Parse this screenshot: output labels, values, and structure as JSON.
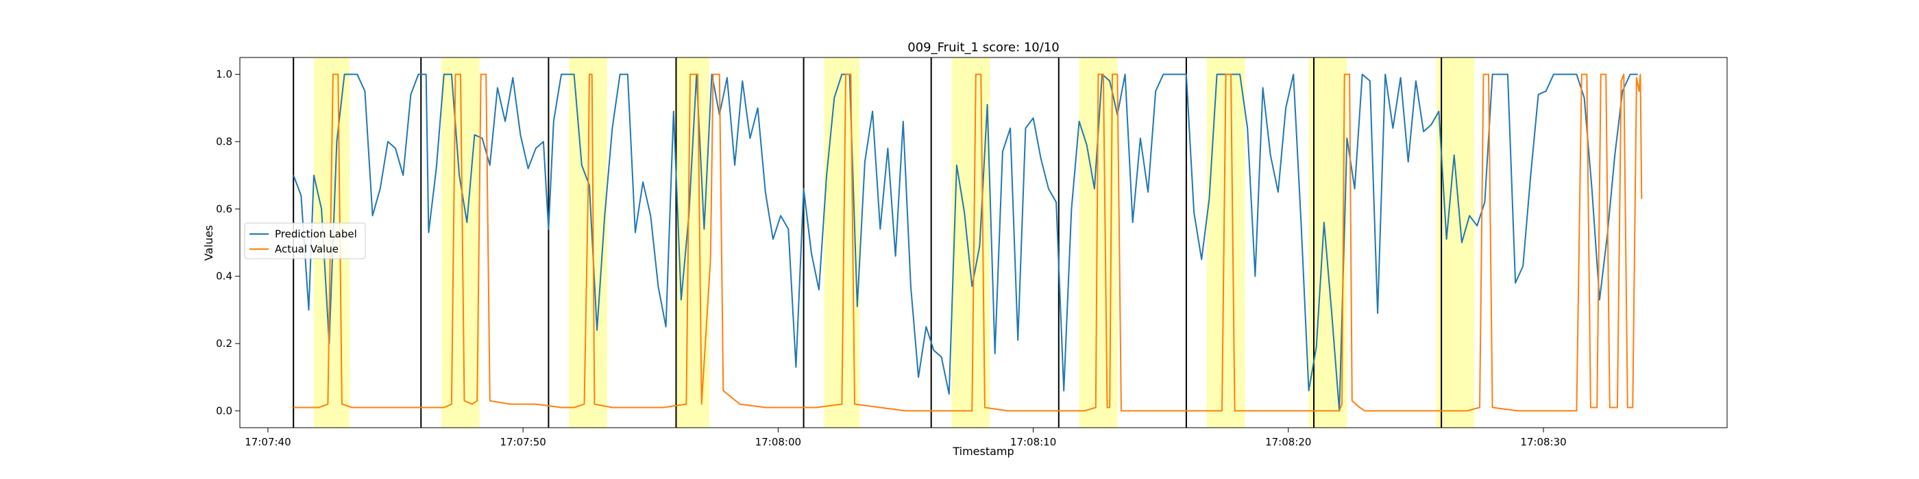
{
  "chart_data": {
    "type": "line",
    "title": "009_Fruit_1 score: 10/10",
    "xlabel": "Timestamp",
    "ylabel": "Values",
    "x_unit": "seconds since 17:07:40",
    "xlim": [
      -1.1,
      57.2
    ],
    "ylim": [
      -0.05,
      1.05
    ],
    "x_ticks": [
      {
        "value": 0,
        "label": "17:07:40"
      },
      {
        "value": 10,
        "label": "17:07:50"
      },
      {
        "value": 20,
        "label": "17:08:00"
      },
      {
        "value": 30,
        "label": "17:08:10"
      },
      {
        "value": 40,
        "label": "17:08:20"
      },
      {
        "value": 50,
        "label": "17:08:30"
      }
    ],
    "y_ticks": [
      {
        "value": 0.0,
        "label": "0.0"
      },
      {
        "value": 0.2,
        "label": "0.2"
      },
      {
        "value": 0.4,
        "label": "0.4"
      },
      {
        "value": 0.6,
        "label": "0.6"
      },
      {
        "value": 0.8,
        "label": "0.8"
      },
      {
        "value": 1.0,
        "label": "1.0"
      }
    ],
    "legend_position": "center-left",
    "grid": false,
    "vertical_lines": [
      1.0,
      6.0,
      11.0,
      16.0,
      21.0,
      26.0,
      31.0,
      36.0,
      41.0,
      46.0
    ],
    "highlight_spans": [
      [
        1.8,
        3.2
      ],
      [
        6.8,
        8.3
      ],
      [
        11.8,
        13.3
      ],
      [
        16.0,
        17.3
      ],
      [
        21.8,
        23.2
      ],
      [
        26.8,
        28.3
      ],
      [
        31.8,
        33.3
      ],
      [
        36.8,
        38.3
      ],
      [
        40.8,
        42.3
      ],
      [
        45.8,
        47.3
      ]
    ],
    "highlight_color": "#ffff99",
    "series": [
      {
        "name": "Prediction Label",
        "color": "#1f77b4",
        "points": [
          [
            1.0,
            0.7
          ],
          [
            1.3,
            0.64
          ],
          [
            1.6,
            0.3
          ],
          [
            1.8,
            0.7
          ],
          [
            2.1,
            0.6
          ],
          [
            2.4,
            0.2
          ],
          [
            2.7,
            0.8
          ],
          [
            3.0,
            1.0
          ],
          [
            3.5,
            1.0
          ],
          [
            3.8,
            0.95
          ],
          [
            4.1,
            0.58
          ],
          [
            4.4,
            0.66
          ],
          [
            4.7,
            0.8
          ],
          [
            5.0,
            0.78
          ],
          [
            5.3,
            0.7
          ],
          [
            5.6,
            0.94
          ],
          [
            5.9,
            1.0
          ],
          [
            6.2,
            1.0
          ],
          [
            6.3,
            0.53
          ],
          [
            6.6,
            0.72
          ],
          [
            6.9,
            1.0
          ],
          [
            7.2,
            1.0
          ],
          [
            7.5,
            0.7
          ],
          [
            7.8,
            0.56
          ],
          [
            8.1,
            0.82
          ],
          [
            8.4,
            0.81
          ],
          [
            8.7,
            0.73
          ],
          [
            9.0,
            0.96
          ],
          [
            9.3,
            0.86
          ],
          [
            9.6,
            0.99
          ],
          [
            9.9,
            0.82
          ],
          [
            10.2,
            0.72
          ],
          [
            10.5,
            0.78
          ],
          [
            10.8,
            0.8
          ],
          [
            11.0,
            0.54
          ],
          [
            11.2,
            0.86
          ],
          [
            11.5,
            1.0
          ],
          [
            12.0,
            1.0
          ],
          [
            12.3,
            0.73
          ],
          [
            12.6,
            0.67
          ],
          [
            12.9,
            0.24
          ],
          [
            13.2,
            0.58
          ],
          [
            13.5,
            0.84
          ],
          [
            13.8,
            1.0
          ],
          [
            14.1,
            1.0
          ],
          [
            14.4,
            0.53
          ],
          [
            14.7,
            0.68
          ],
          [
            15.0,
            0.58
          ],
          [
            15.3,
            0.37
          ],
          [
            15.6,
            0.25
          ],
          [
            15.9,
            0.89
          ],
          [
            16.2,
            0.33
          ],
          [
            16.5,
            0.58
          ],
          [
            16.8,
            1.0
          ],
          [
            17.1,
            0.54
          ],
          [
            17.4,
            1.0
          ],
          [
            17.7,
            0.88
          ],
          [
            18.0,
            0.99
          ],
          [
            18.3,
            0.73
          ],
          [
            18.6,
            0.98
          ],
          [
            18.9,
            0.81
          ],
          [
            19.2,
            0.9
          ],
          [
            19.5,
            0.65
          ],
          [
            19.8,
            0.51
          ],
          [
            20.1,
            0.58
          ],
          [
            20.4,
            0.54
          ],
          [
            20.7,
            0.13
          ],
          [
            21.0,
            0.66
          ],
          [
            21.3,
            0.47
          ],
          [
            21.6,
            0.36
          ],
          [
            21.9,
            0.7
          ],
          [
            22.2,
            0.93
          ],
          [
            22.5,
            1.0
          ],
          [
            22.8,
            1.0
          ],
          [
            23.1,
            0.31
          ],
          [
            23.4,
            0.74
          ],
          [
            23.7,
            0.89
          ],
          [
            24.0,
            0.54
          ],
          [
            24.3,
            0.78
          ],
          [
            24.6,
            0.46
          ],
          [
            24.9,
            0.86
          ],
          [
            25.2,
            0.37
          ],
          [
            25.5,
            0.1
          ],
          [
            25.8,
            0.25
          ],
          [
            26.1,
            0.18
          ],
          [
            26.4,
            0.16
          ],
          [
            26.7,
            0.05
          ],
          [
            27.0,
            0.73
          ],
          [
            27.3,
            0.59
          ],
          [
            27.6,
            0.37
          ],
          [
            27.9,
            0.49
          ],
          [
            28.2,
            0.91
          ],
          [
            28.5,
            0.17
          ],
          [
            28.8,
            0.77
          ],
          [
            29.1,
            0.84
          ],
          [
            29.4,
            0.21
          ],
          [
            29.7,
            0.84
          ],
          [
            30.0,
            0.87
          ],
          [
            30.3,
            0.75
          ],
          [
            30.6,
            0.66
          ],
          [
            30.9,
            0.62
          ],
          [
            31.2,
            0.06
          ],
          [
            31.5,
            0.6
          ],
          [
            31.8,
            0.86
          ],
          [
            32.1,
            0.79
          ],
          [
            32.4,
            0.66
          ],
          [
            32.7,
            1.0
          ],
          [
            33.0,
            0.98
          ],
          [
            33.3,
            0.88
          ],
          [
            33.6,
            1.0
          ],
          [
            33.9,
            0.56
          ],
          [
            34.2,
            0.81
          ],
          [
            34.5,
            0.65
          ],
          [
            34.8,
            0.95
          ],
          [
            35.1,
            1.0
          ],
          [
            35.7,
            1.0
          ],
          [
            36.0,
            1.0
          ],
          [
            36.3,
            0.59
          ],
          [
            36.6,
            0.45
          ],
          [
            36.9,
            0.63
          ],
          [
            37.2,
            1.0
          ],
          [
            37.5,
            1.0
          ],
          [
            37.8,
            1.0
          ],
          [
            38.1,
            1.0
          ],
          [
            38.4,
            0.84
          ],
          [
            38.7,
            0.4
          ],
          [
            39.0,
            0.96
          ],
          [
            39.3,
            0.76
          ],
          [
            39.6,
            0.65
          ],
          [
            39.9,
            0.9
          ],
          [
            40.2,
            1.0
          ],
          [
            40.5,
            0.56
          ],
          [
            40.8,
            0.06
          ],
          [
            41.1,
            0.19
          ],
          [
            41.4,
            0.56
          ],
          [
            41.7,
            0.29
          ],
          [
            42.0,
            0.0
          ],
          [
            42.3,
            0.81
          ],
          [
            42.6,
            0.66
          ],
          [
            42.9,
            1.0
          ],
          [
            43.2,
            0.98
          ],
          [
            43.5,
            0.29
          ],
          [
            43.8,
            1.0
          ],
          [
            44.1,
            0.84
          ],
          [
            44.4,
            0.99
          ],
          [
            44.7,
            0.74
          ],
          [
            45.0,
            0.98
          ],
          [
            45.3,
            0.83
          ],
          [
            45.6,
            0.85
          ],
          [
            45.9,
            0.89
          ],
          [
            46.2,
            0.51
          ],
          [
            46.5,
            0.76
          ],
          [
            46.8,
            0.5
          ],
          [
            47.1,
            0.58
          ],
          [
            47.4,
            0.55
          ],
          [
            47.7,
            0.62
          ],
          [
            48.0,
            1.0
          ],
          [
            48.3,
            1.0
          ],
          [
            48.6,
            1.0
          ],
          [
            48.9,
            0.38
          ],
          [
            49.2,
            0.43
          ],
          [
            49.5,
            0.7
          ],
          [
            49.8,
            0.94
          ],
          [
            50.1,
            0.95
          ],
          [
            50.4,
            1.0
          ],
          [
            50.7,
            1.0
          ],
          [
            51.0,
            1.0
          ],
          [
            51.3,
            1.0
          ],
          [
            51.6,
            0.93
          ],
          [
            51.9,
            0.66
          ],
          [
            52.2,
            0.33
          ],
          [
            52.5,
            0.52
          ],
          [
            52.8,
            0.76
          ],
          [
            53.1,
            0.95
          ],
          [
            53.4,
            1.0
          ],
          [
            53.7,
            1.0
          ]
        ]
      },
      {
        "name": "Actual Value",
        "color": "#ff7f0e",
        "points": [
          [
            1.0,
            0.01
          ],
          [
            1.5,
            0.01
          ],
          [
            2.0,
            0.01
          ],
          [
            2.35,
            0.02
          ],
          [
            2.55,
            1.0
          ],
          [
            2.75,
            1.0
          ],
          [
            2.9,
            0.02
          ],
          [
            3.3,
            0.01
          ],
          [
            4.0,
            0.01
          ],
          [
            5.0,
            0.01
          ],
          [
            6.0,
            0.01
          ],
          [
            6.9,
            0.01
          ],
          [
            7.2,
            0.02
          ],
          [
            7.35,
            1.0
          ],
          [
            7.55,
            1.0
          ],
          [
            7.7,
            0.03
          ],
          [
            8.0,
            0.02
          ],
          [
            8.2,
            0.03
          ],
          [
            8.35,
            1.0
          ],
          [
            8.55,
            1.0
          ],
          [
            8.7,
            0.03
          ],
          [
            9.5,
            0.02
          ],
          [
            10.5,
            0.02
          ],
          [
            11.5,
            0.01
          ],
          [
            12.0,
            0.01
          ],
          [
            12.4,
            0.02
          ],
          [
            12.55,
            0.65
          ],
          [
            12.6,
            1.0
          ],
          [
            12.7,
            1.0
          ],
          [
            12.8,
            0.02
          ],
          [
            13.5,
            0.01
          ],
          [
            14.5,
            0.01
          ],
          [
            15.5,
            0.01
          ],
          [
            16.4,
            0.02
          ],
          [
            16.55,
            1.0
          ],
          [
            16.85,
            1.0
          ],
          [
            17.0,
            0.02
          ],
          [
            17.35,
            0.45
          ],
          [
            17.45,
            1.0
          ],
          [
            17.7,
            1.0
          ],
          [
            17.85,
            0.06
          ],
          [
            18.5,
            0.02
          ],
          [
            19.5,
            0.01
          ],
          [
            20.5,
            0.01
          ],
          [
            21.5,
            0.01
          ],
          [
            22.5,
            0.02
          ],
          [
            22.65,
            1.0
          ],
          [
            22.85,
            1.0
          ],
          [
            23.0,
            0.02
          ],
          [
            24.0,
            0.01
          ],
          [
            25.0,
            0.0
          ],
          [
            26.0,
            0.0
          ],
          [
            27.0,
            0.0
          ],
          [
            27.6,
            0.0
          ],
          [
            27.75,
            1.0
          ],
          [
            27.95,
            1.0
          ],
          [
            28.1,
            0.01
          ],
          [
            29.0,
            0.0
          ],
          [
            30.0,
            0.0
          ],
          [
            31.0,
            0.0
          ],
          [
            32.0,
            0.0
          ],
          [
            32.45,
            0.01
          ],
          [
            32.55,
            1.0
          ],
          [
            32.75,
            1.0
          ],
          [
            32.9,
            0.01
          ],
          [
            33.0,
            0.01
          ],
          [
            33.1,
            1.0
          ],
          [
            33.3,
            1.0
          ],
          [
            33.45,
            0.0
          ],
          [
            34.5,
            0.0
          ],
          [
            35.5,
            0.0
          ],
          [
            36.5,
            0.0
          ],
          [
            37.4,
            0.0
          ],
          [
            37.55,
            1.0
          ],
          [
            37.75,
            1.0
          ],
          [
            37.9,
            0.0
          ],
          [
            38.5,
            0.0
          ],
          [
            39.5,
            0.0
          ],
          [
            40.5,
            0.0
          ],
          [
            41.5,
            0.0
          ],
          [
            42.0,
            0.0
          ],
          [
            42.1,
            0.02
          ],
          [
            42.2,
            1.0
          ],
          [
            42.4,
            1.0
          ],
          [
            42.5,
            0.03
          ],
          [
            42.8,
            0.01
          ],
          [
            43.0,
            0.0
          ],
          [
            44.0,
            0.0
          ],
          [
            45.0,
            0.0
          ],
          [
            46.0,
            0.0
          ],
          [
            47.0,
            0.0
          ],
          [
            47.5,
            0.01
          ],
          [
            47.65,
            1.0
          ],
          [
            47.85,
            1.0
          ],
          [
            48.0,
            0.01
          ],
          [
            49.0,
            0.0
          ],
          [
            50.0,
            0.0
          ],
          [
            50.8,
            0.0
          ],
          [
            51.0,
            0.0
          ],
          [
            51.3,
            0.0
          ],
          [
            51.5,
            1.0
          ],
          [
            51.7,
            1.0
          ],
          [
            51.85,
            0.01
          ],
          [
            52.1,
            0.01
          ],
          [
            52.25,
            1.0
          ],
          [
            52.45,
            1.0
          ],
          [
            52.6,
            0.01
          ],
          [
            52.9,
            0.01
          ],
          [
            53.05,
            0.98
          ],
          [
            53.15,
            1.0
          ],
          [
            53.3,
            0.01
          ],
          [
            53.5,
            0.01
          ],
          [
            53.65,
            0.99
          ],
          [
            53.75,
            0.95
          ],
          [
            53.8,
            1.0
          ],
          [
            53.85,
            0.63
          ]
        ]
      }
    ]
  }
}
